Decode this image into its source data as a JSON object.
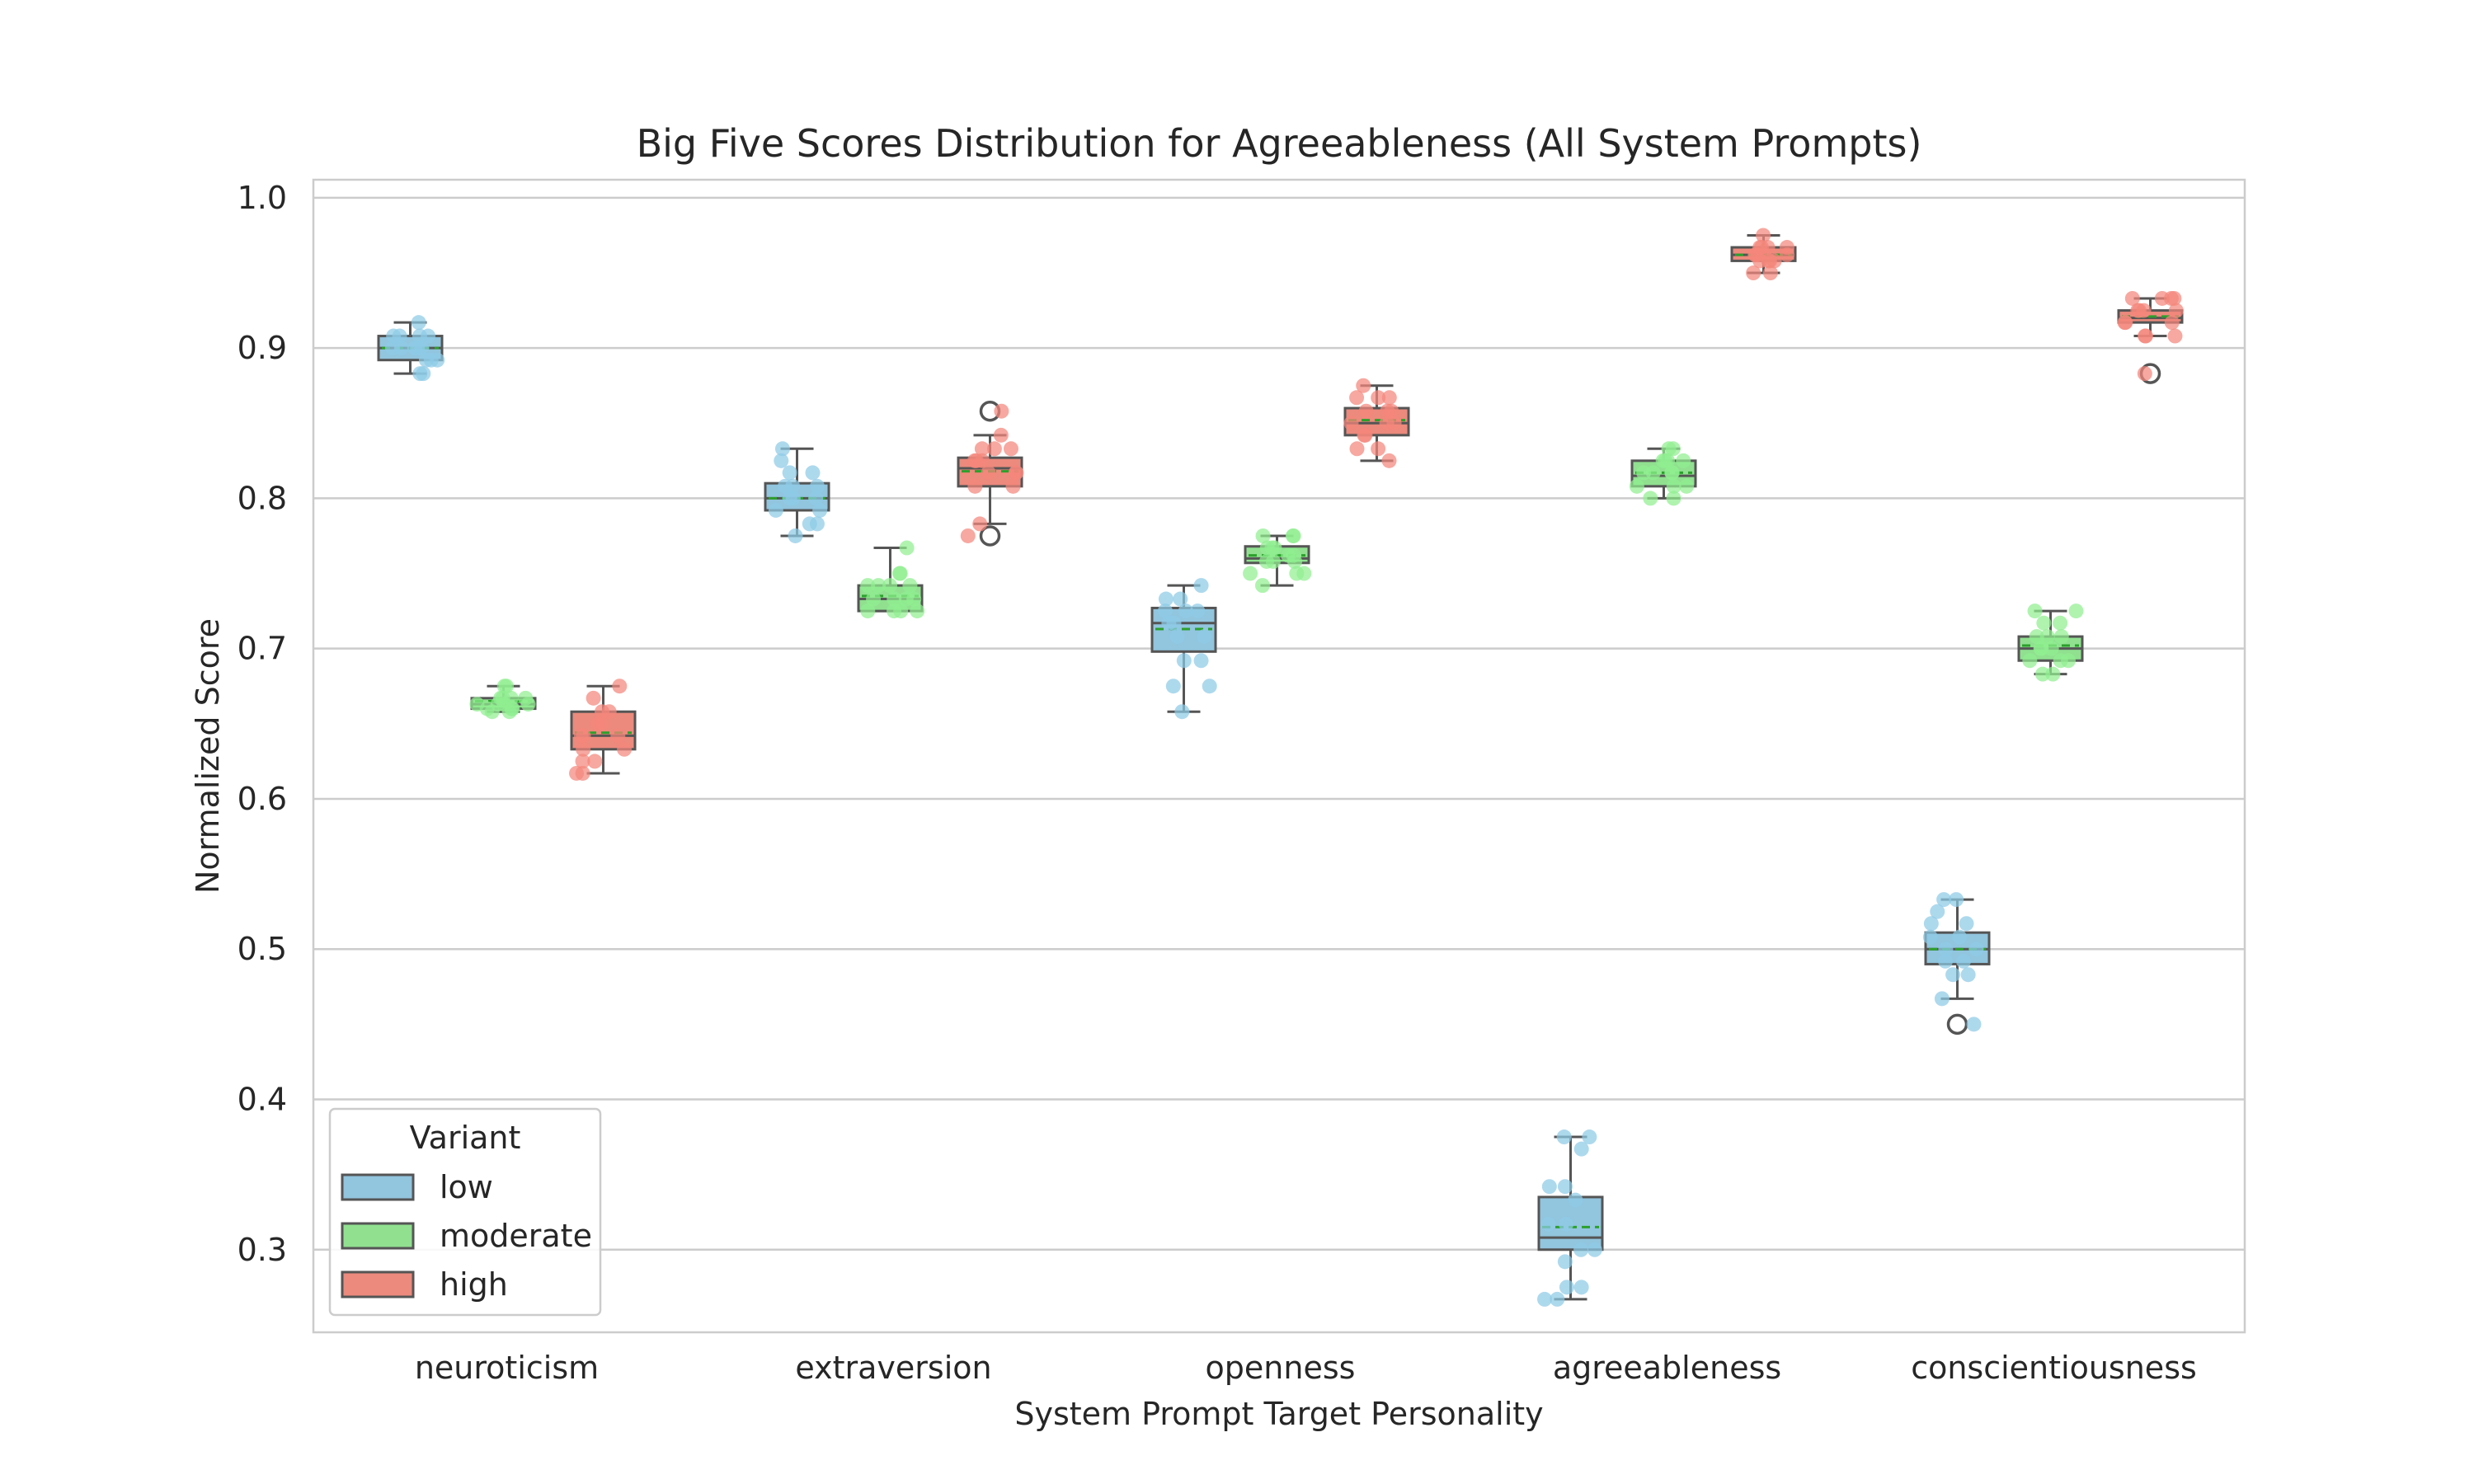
{
  "chart_data": {
    "type": "box",
    "title": "Big Five Scores Distribution for Agreeableness (All System Prompts)",
    "xlabel": "System Prompt Target Personality",
    "ylabel": "Normalized Score",
    "ylim": [
      0.245,
      1.012
    ],
    "yticks": [
      0.3,
      0.4,
      0.5,
      0.6,
      0.7,
      0.8,
      0.9,
      1.0
    ],
    "ytick_labels": [
      "0.3",
      "0.4",
      "0.5",
      "0.6",
      "0.7",
      "0.8",
      "0.9",
      "1.0"
    ],
    "grid": "horizontal",
    "categories": [
      "neuroticism",
      "extraversion",
      "openness",
      "agreeableness",
      "conscientiousness"
    ],
    "legend": {
      "title": "Variant",
      "placement": "lower-left",
      "entries": [
        "low",
        "moderate",
        "high"
      ]
    },
    "series": [
      {
        "name": "low",
        "color": "#8ecae6",
        "box_color": "#92c5de",
        "boxes": [
          {
            "whislo": 0.883,
            "q1": 0.892,
            "med": 0.9,
            "q3": 0.908,
            "whishi": 0.917,
            "mean": 0.9,
            "fliers": [],
            "points": [
              0.917,
              0.908,
              0.9,
              0.892,
              0.883,
              0.908,
              0.9,
              0.892,
              0.9,
              0.908,
              0.883,
              0.9,
              0.892,
              0.908,
              0.9
            ]
          },
          {
            "whislo": 0.775,
            "q1": 0.792,
            "med": 0.8,
            "q3": 0.81,
            "whishi": 0.833,
            "mean": 0.8,
            "fliers": [],
            "points": [
              0.833,
              0.825,
              0.817,
              0.808,
              0.8,
              0.792,
              0.775,
              0.783,
              0.817,
              0.808,
              0.8,
              0.792,
              0.783,
              0.808,
              0.8
            ]
          },
          {
            "whislo": 0.658,
            "q1": 0.698,
            "med": 0.717,
            "q3": 0.727,
            "whishi": 0.742,
            "mean": 0.713,
            "fliers": [],
            "points": [
              0.742,
              0.733,
              0.725,
              0.717,
              0.708,
              0.692,
              0.675,
              0.658,
              0.725,
              0.717,
              0.733,
              0.708,
              0.692,
              0.675,
              0.725
            ]
          },
          {
            "whislo": 0.267,
            "q1": 0.3,
            "med": 0.308,
            "q3": 0.335,
            "whishi": 0.375,
            "mean": 0.315,
            "fliers": [],
            "points": [
              0.375,
              0.367,
              0.342,
              0.333,
              0.317,
              0.3,
              0.292,
              0.275,
              0.267,
              0.375,
              0.342,
              0.317,
              0.3,
              0.275,
              0.267
            ]
          },
          {
            "whislo": 0.467,
            "q1": 0.49,
            "med": 0.5,
            "q3": 0.511,
            "whishi": 0.533,
            "mean": 0.5,
            "fliers": [
              0.45
            ],
            "points": [
              0.533,
              0.525,
              0.517,
              0.508,
              0.5,
              0.492,
              0.483,
              0.467,
              0.45,
              0.533,
              0.508,
              0.5,
              0.492,
              0.483,
              0.517
            ]
          }
        ]
      },
      {
        "name": "moderate",
        "color": "#90ee90",
        "box_color": "#90e090",
        "boxes": [
          {
            "whislo": 0.658,
            "q1": 0.66,
            "med": 0.663,
            "q3": 0.667,
            "whishi": 0.675,
            "mean": 0.665,
            "fliers": [],
            "points": [
              0.675,
              0.667,
              0.663,
              0.66,
              0.658,
              0.667,
              0.663,
              0.66,
              0.675,
              0.667,
              0.658,
              0.663,
              0.667,
              0.66,
              0.663
            ]
          },
          {
            "whislo": 0.725,
            "q1": 0.725,
            "med": 0.733,
            "q3": 0.742,
            "whishi": 0.767,
            "mean": 0.735,
            "fliers": [],
            "points": [
              0.767,
              0.75,
              0.742,
              0.733,
              0.725,
              0.742,
              0.733,
              0.725,
              0.75,
              0.742,
              0.733,
              0.725,
              0.742,
              0.733,
              0.725
            ]
          },
          {
            "whislo": 0.742,
            "q1": 0.757,
            "med": 0.76,
            "q3": 0.768,
            "whishi": 0.775,
            "mean": 0.762,
            "fliers": [],
            "points": [
              0.775,
              0.767,
              0.762,
              0.758,
              0.75,
              0.742,
              0.775,
              0.767,
              0.758,
              0.75,
              0.767,
              0.762,
              0.758,
              0.775,
              0.75
            ]
          },
          {
            "whislo": 0.8,
            "q1": 0.808,
            "med": 0.815,
            "q3": 0.825,
            "whishi": 0.833,
            "mean": 0.817,
            "fliers": [],
            "points": [
              0.833,
              0.825,
              0.817,
              0.808,
              0.8,
              0.825,
              0.817,
              0.808,
              0.833,
              0.825,
              0.817,
              0.808,
              0.8,
              0.817,
              0.825
            ]
          },
          {
            "whislo": 0.683,
            "q1": 0.692,
            "med": 0.7,
            "q3": 0.708,
            "whishi": 0.725,
            "mean": 0.702,
            "fliers": [],
            "points": [
              0.725,
              0.717,
              0.708,
              0.7,
              0.692,
              0.683,
              0.717,
              0.708,
              0.7,
              0.692,
              0.683,
              0.725,
              0.708,
              0.7,
              0.692
            ]
          }
        ]
      },
      {
        "name": "high",
        "color": "#f4877c",
        "box_color": "#eb8a7d",
        "boxes": [
          {
            "whislo": 0.617,
            "q1": 0.633,
            "med": 0.642,
            "q3": 0.658,
            "whishi": 0.675,
            "mean": 0.644,
            "fliers": [],
            "points": [
              0.675,
              0.667,
              0.658,
              0.65,
              0.642,
              0.633,
              0.625,
              0.617,
              0.658,
              0.65,
              0.642,
              0.633,
              0.625,
              0.617,
              0.642
            ]
          },
          {
            "whislo": 0.783,
            "q1": 0.808,
            "med": 0.82,
            "q3": 0.827,
            "whishi": 0.842,
            "mean": 0.818,
            "fliers": [
              0.858,
              0.775
            ],
            "points": [
              0.858,
              0.842,
              0.833,
              0.825,
              0.817,
              0.808,
              0.783,
              0.775,
              0.833,
              0.825,
              0.817,
              0.808,
              0.825,
              0.833,
              0.817
            ]
          },
          {
            "whislo": 0.825,
            "q1": 0.842,
            "med": 0.85,
            "q3": 0.86,
            "whishi": 0.875,
            "mean": 0.852,
            "fliers": [],
            "points": [
              0.875,
              0.867,
              0.858,
              0.85,
              0.842,
              0.833,
              0.825,
              0.867,
              0.858,
              0.85,
              0.842,
              0.833,
              0.858,
              0.85,
              0.867
            ]
          },
          {
            "whislo": 0.95,
            "q1": 0.958,
            "med": 0.962,
            "q3": 0.967,
            "whishi": 0.975,
            "mean": 0.962,
            "fliers": [],
            "points": [
              0.975,
              0.967,
              0.962,
              0.958,
              0.95,
              0.967,
              0.962,
              0.958,
              0.967,
              0.958,
              0.95,
              0.962,
              0.967,
              0.958,
              0.962
            ]
          },
          {
            "whislo": 0.908,
            "q1": 0.917,
            "med": 0.92,
            "q3": 0.925,
            "whishi": 0.933,
            "mean": 0.921,
            "fliers": [
              0.883
            ],
            "points": [
              0.933,
              0.925,
              0.917,
              0.908,
              0.883,
              0.933,
              0.925,
              0.917,
              0.908,
              0.925,
              0.933,
              0.917,
              0.925,
              0.908,
              0.933
            ]
          }
        ]
      }
    ]
  }
}
